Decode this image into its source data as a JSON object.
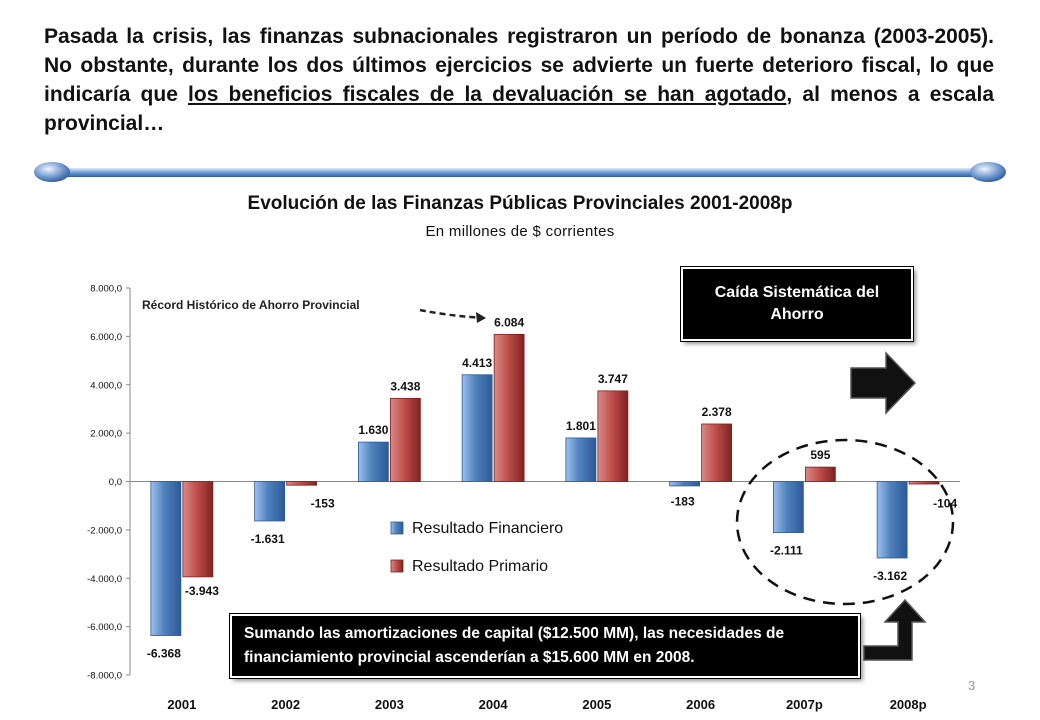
{
  "intro": {
    "text_before": "Pasada la crisis, las finanzas subnacionales registraron un período de bonanza (2003-2005). No obstante, durante los dos últimos ejercicios se advierte un fuerte deterioro fiscal, lo que indicaría que ",
    "underlined": "los beneficios fiscales de la devaluación se han agotado",
    "text_after": ", al menos a escala provincial…"
  },
  "callout": "Caída Sistemática del Ahorro",
  "note": "Sumando las amortizaciones de capital ($12.500 MM), las necesidades de financiamiento provincial ascenderían a $15.600 MM en 2008.",
  "record_annotation": "Récord Histórico de Ahorro Provincial",
  "page_number": "3",
  "colors": {
    "financiero": "#4f81bd",
    "primario": "#c0504d",
    "callout_bg": "#000000"
  },
  "chart_data": {
    "type": "bar",
    "title": "Evolución de las Finanzas Públicas Provinciales 2001-2008p",
    "subtitle": "En millones de $ corrientes",
    "categories": [
      "2001",
      "2002",
      "2003",
      "2004",
      "2005",
      "2006",
      "2007p",
      "2008p"
    ],
    "series": [
      {
        "name": "Resultado Financiero",
        "values": [
          -6368,
          -1631,
          1630,
          4413,
          1801,
          -183,
          -2111,
          -3162
        ],
        "labels": [
          "-6.368",
          "-1.631",
          "1.630",
          "4.413",
          "1.801",
          "-183",
          "-2.111",
          "-3.162"
        ]
      },
      {
        "name": "Resultado Primario",
        "values": [
          -3943,
          -153,
          3438,
          6084,
          3747,
          2378,
          595,
          -104
        ],
        "labels": [
          "-3.943",
          "-153",
          "3.438",
          "6.084",
          "3.747",
          "2.378",
          "595",
          "-104"
        ]
      }
    ],
    "yticks": [
      "8.000,0",
      "6.000,0",
      "4.000,0",
      "2.000,0",
      "0,0",
      "-2.000,0",
      "-4.000,0",
      "-6.000,0",
      "-8.000,0"
    ],
    "ylim": [
      -8000,
      8000
    ],
    "grid": false,
    "legend": "center"
  }
}
